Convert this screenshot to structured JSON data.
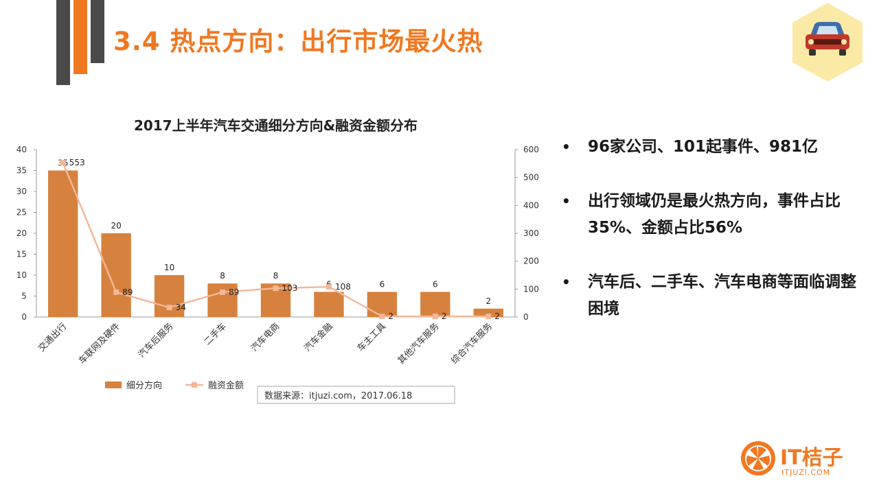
{
  "header": {
    "title": "3.4  热点方向：出行市场最火热"
  },
  "colors": {
    "accent": "#f07820",
    "dark_bar": "#4a4a4a",
    "bar_fill": "#d6823e",
    "line": "#f4b899",
    "badge": "#fbe9a6"
  },
  "badge": {
    "icon": "car-icon"
  },
  "chart_data": {
    "type": "bar",
    "title": "2017上半年汽车交通细分方向&融资金额分布",
    "categories": [
      "交通出行",
      "车联网及硬件",
      "汽车后服务",
      "二手车",
      "汽车电商",
      "汽车金融",
      "车主工具",
      "其他汽车服务",
      "综合汽车服务"
    ],
    "series": [
      {
        "name": "细分方向",
        "type": "bar",
        "axis": "left",
        "values": [
          35,
          20,
          10,
          8,
          8,
          6,
          6,
          6,
          2
        ]
      },
      {
        "name": "融资金额",
        "type": "line",
        "axis": "right",
        "values": [
          553,
          89,
          34,
          89,
          103,
          108,
          2,
          2,
          2
        ]
      }
    ],
    "ylim": [
      0,
      40
    ],
    "yticks": [
      0,
      5,
      10,
      15,
      20,
      25,
      30,
      35,
      40
    ],
    "y2lim": [
      0,
      600
    ],
    "y2ticks": [
      0,
      100,
      200,
      300,
      400,
      500,
      600
    ],
    "grid": false,
    "legend_position": "bottom-left",
    "source_note": "数据来源：itjuzi.com，2017.06.18"
  },
  "bullets": [
    "96家公司、101起事件、981亿",
    "出行领域仍是最火热方向，事件占比35%、金额占比56%",
    "汽车后、二手车、汽车电商等面临调整困境"
  ],
  "bullet_symbol": "•",
  "logo": {
    "text": "IT桔子",
    "sub": "ITJUZI.COM"
  }
}
